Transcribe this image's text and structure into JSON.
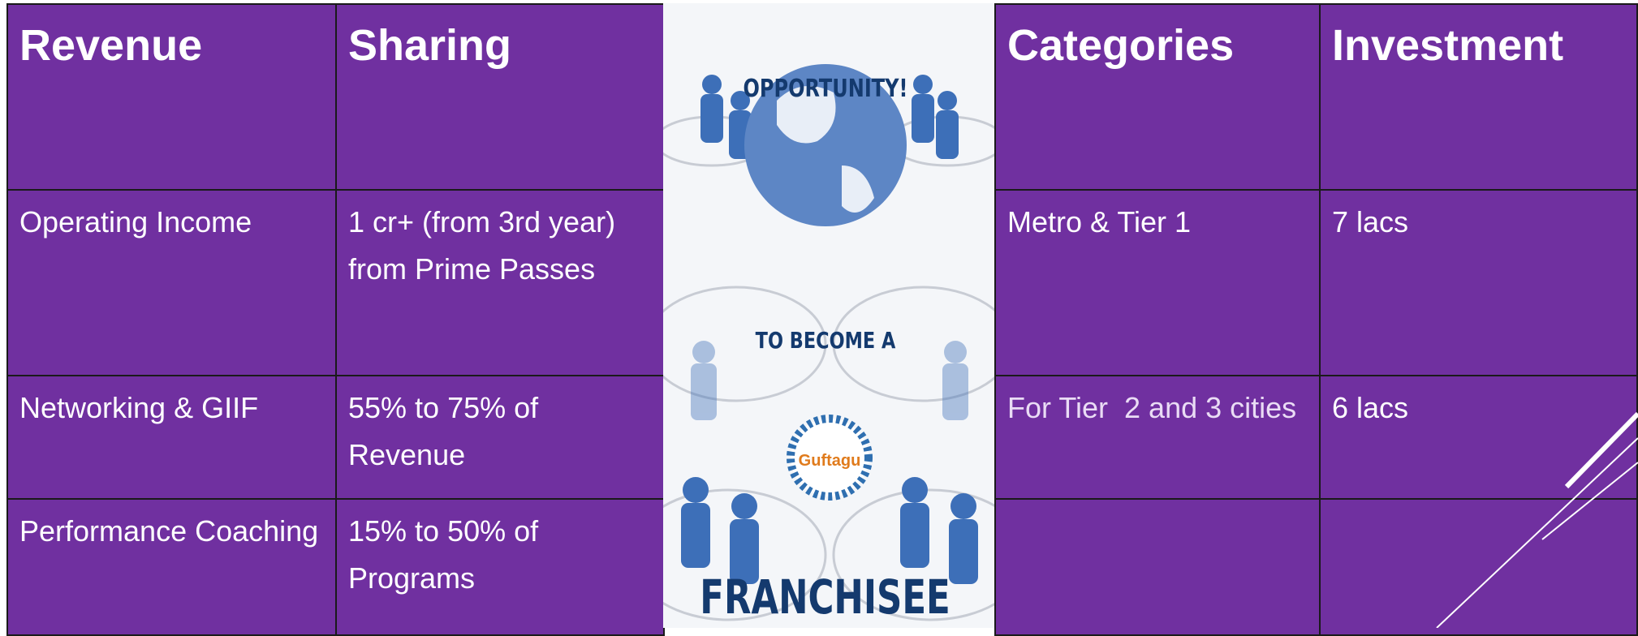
{
  "left_table": {
    "header": [
      "Revenue",
      "Sharing"
    ],
    "rows": [
      [
        "Operating Income",
        "1 cr+ (from 3rd year) from Prime Passes"
      ],
      [
        "Networking & GIIF",
        "55% to 75% of Revenue"
      ],
      [
        "Performance Coaching",
        "15% to 50% of Programs"
      ]
    ]
  },
  "image": {
    "top_text": "OPPORTUNITY!",
    "middle_text": "TO BECOME A",
    "logo_text": "Guftagu",
    "bottom_text": "FRANCHISEE"
  },
  "right_table": {
    "header": [
      "Categories",
      "Investment"
    ],
    "rows": [
      [
        "Metro & Tier 1",
        "7 lacs"
      ],
      [
        "For Tier  2 and 3 cities",
        "6 lacs"
      ]
    ]
  }
}
